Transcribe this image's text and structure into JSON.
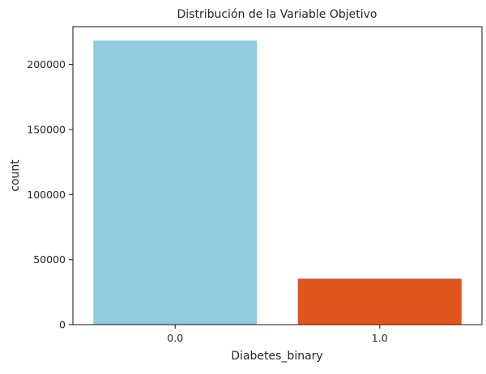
{
  "chart_data": {
    "type": "bar",
    "title": "Distribución de la Variable Objetivo",
    "xlabel": "Diabetes_binary",
    "ylabel": "count",
    "categories": [
      "0.0",
      "1.0"
    ],
    "values": [
      218334,
      35346
    ],
    "colors": [
      "#92c9de",
      "#e2541e"
    ],
    "ylim": [
      0,
      229000
    ],
    "yticks": [
      0,
      50000,
      100000,
      150000,
      200000
    ],
    "grid": false,
    "legend": "none"
  }
}
